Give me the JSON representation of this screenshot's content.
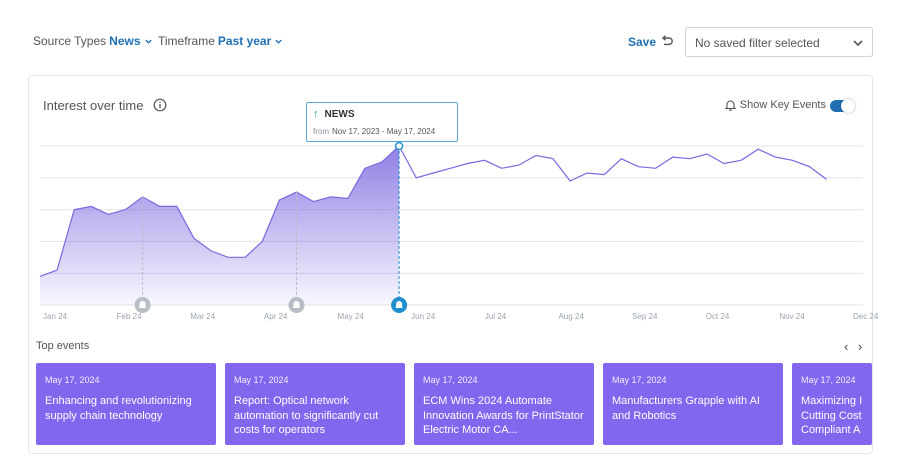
{
  "filters": {
    "source_label": "Source Types",
    "source_value": "News",
    "timeframe_label": "Timeframe",
    "timeframe_value": "Past year",
    "save_label": "Save",
    "saved_filter_placeholder": "No saved filter selected"
  },
  "card": {
    "title": "Interest over time",
    "key_events_label": "Show Key Events",
    "key_events_on": true
  },
  "tooltip": {
    "series": "NEWS",
    "from_label": "from",
    "range": "Nov 17, 2023 - May 17, 2024"
  },
  "colors": {
    "accent": "#1f6fb2",
    "series": "#7b68e0",
    "event_card": "#8266ee",
    "trend_up": "#2ea36b"
  },
  "chart_data": {
    "type": "area",
    "x_labels": [
      "Jan 24",
      "Feb 24",
      "Mar 24",
      "Apr 24",
      "May 24",
      "Jun 24",
      "Jul 24",
      "Aug 24",
      "Sep 24",
      "Oct 24",
      "Nov 24",
      "Dec 24"
    ],
    "y_range": [
      0,
      100
    ],
    "grid": true,
    "highlighted_until_index": 21,
    "values": [
      18,
      22,
      60,
      62,
      57,
      60,
      68,
      62,
      62,
      42,
      34,
      30,
      30,
      40,
      66,
      71,
      65,
      68,
      67,
      86,
      90,
      100,
      80,
      83,
      86,
      89,
      91,
      86,
      88,
      94,
      92,
      78,
      83,
      82,
      92,
      87,
      86,
      93,
      92,
      95,
      89,
      91,
      98,
      93,
      91,
      87,
      79
    ],
    "key_event_indices": [
      6,
      15,
      21
    ]
  },
  "top_events": {
    "label": "Top events",
    "prev_icon": "chevron-left-icon",
    "next_icon": "chevron-right-icon",
    "items": [
      {
        "date": "May 17, 2024",
        "title": "Enhancing and revolutionizing supply chain technology"
      },
      {
        "date": "May 17, 2024",
        "title": "Report: Optical network automation to significantly cut costs for operators"
      },
      {
        "date": "May 17, 2024",
        "title": "ECM Wins 2024 Automate Innovation Awards for PrintStator Electric Motor CA..."
      },
      {
        "date": "May 17, 2024",
        "title": "Manufacturers Grapple with AI and Robotics"
      },
      {
        "date": "May 17, 2024",
        "title": "Maximizing I Cutting Cost Compliant A"
      }
    ]
  }
}
